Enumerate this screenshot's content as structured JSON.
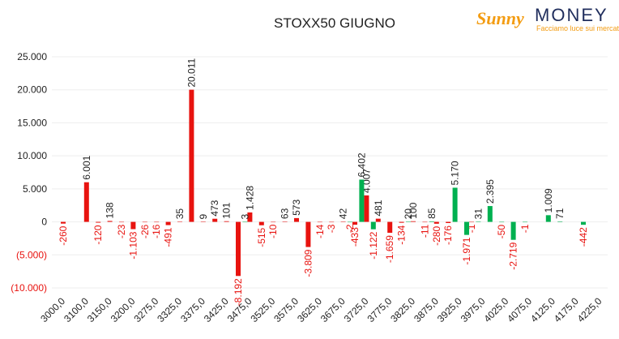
{
  "logo": {
    "brand1": "Sunny",
    "brand2": "MONEY",
    "tagline": "Facciamo luce sui mercati"
  },
  "chart_data": {
    "type": "bar",
    "title": "STOXX50 GIUGNO",
    "categories": [
      "3000,0",
      null,
      "3100,0",
      null,
      "3150,0",
      null,
      "3200,0",
      null,
      "3275,0",
      null,
      "3325,0",
      null,
      "3375,0",
      null,
      "3425,0",
      null,
      "3475,0",
      null,
      "3525,0",
      null,
      "3575,0",
      null,
      "3625,0",
      null,
      "3675,0",
      null,
      "3725,0",
      null,
      "3775,0",
      null,
      "3825,0",
      null,
      "3875,0",
      null,
      "3925,0",
      null,
      "3975,0",
      null,
      "4025,0",
      null,
      "4075,0",
      null,
      "4125,0",
      null,
      "4175,0",
      null,
      "4225,0"
    ],
    "series": [
      {
        "color": "#e8130f",
        "values": [
          -260,
          null,
          6001,
          -120,
          138,
          -23,
          -1103,
          -26,
          -16,
          -491,
          35,
          20011,
          9,
          473,
          101,
          -8192,
          1428,
          -515,
          -10,
          63,
          573,
          -3809,
          -14,
          -3,
          42,
          -433,
          4007,
          481,
          -1659,
          -134,
          100,
          -11,
          -280,
          -176,
          null,
          -1,
          null,
          null,
          null,
          null,
          null,
          null,
          null,
          null,
          null,
          null,
          null
        ],
        "value_labels": [
          "-260",
          null,
          "6.001",
          "-120",
          "138",
          "-23",
          "-1.103",
          "-26",
          "-16",
          "-491",
          "35",
          "20.011",
          "9",
          "473",
          "101",
          "-8.192",
          "1.428",
          "-515",
          "-10",
          "63",
          "573",
          "-3.809",
          "-14",
          "-3",
          "42",
          "-433",
          "4.007",
          "481",
          "-1.659",
          "-134",
          "100",
          "-11",
          "-280",
          "-176",
          null,
          "-1",
          null,
          null,
          null,
          null,
          null,
          null,
          null,
          null,
          null,
          null,
          null
        ]
      },
      {
        "color": "#00b050",
        "values": [
          null,
          null,
          null,
          null,
          null,
          null,
          null,
          null,
          null,
          null,
          null,
          null,
          null,
          null,
          null,
          null,
          3,
          null,
          null,
          null,
          null,
          null,
          null,
          null,
          null,
          -2,
          6402,
          -1122,
          null,
          null,
          20,
          null,
          85,
          null,
          5170,
          -1971,
          31,
          2395,
          -50,
          -2719,
          -1,
          null,
          1009,
          71,
          null,
          -442,
          null
        ],
        "value_labels": [
          null,
          null,
          null,
          null,
          null,
          null,
          null,
          null,
          null,
          null,
          null,
          null,
          null,
          null,
          null,
          null,
          "3",
          null,
          null,
          null,
          null,
          null,
          null,
          null,
          null,
          "-2",
          "6.402",
          "-1.122",
          null,
          null,
          "20",
          null,
          "85",
          null,
          "5.170",
          "-1.971",
          "31",
          "2.395",
          "-50",
          "-2.719",
          "-1",
          null,
          "1.009",
          "71",
          null,
          "-442",
          null
        ]
      }
    ],
    "ylim": [
      -10000,
      25000
    ],
    "yticks": [
      {
        "value": -10000,
        "label": "(10.000)"
      },
      {
        "value": -5000,
        "label": "(5.000)"
      },
      0,
      {
        "value": 5000,
        "label": "5.000"
      },
      {
        "value": 10000,
        "label": "10.000"
      },
      {
        "value": 15000,
        "label": "15.000"
      },
      {
        "value": 20000,
        "label": "20.000"
      },
      {
        "value": 25000,
        "label": "25.000"
      }
    ],
    "negative_color": "#e8130f",
    "grid": true
  }
}
